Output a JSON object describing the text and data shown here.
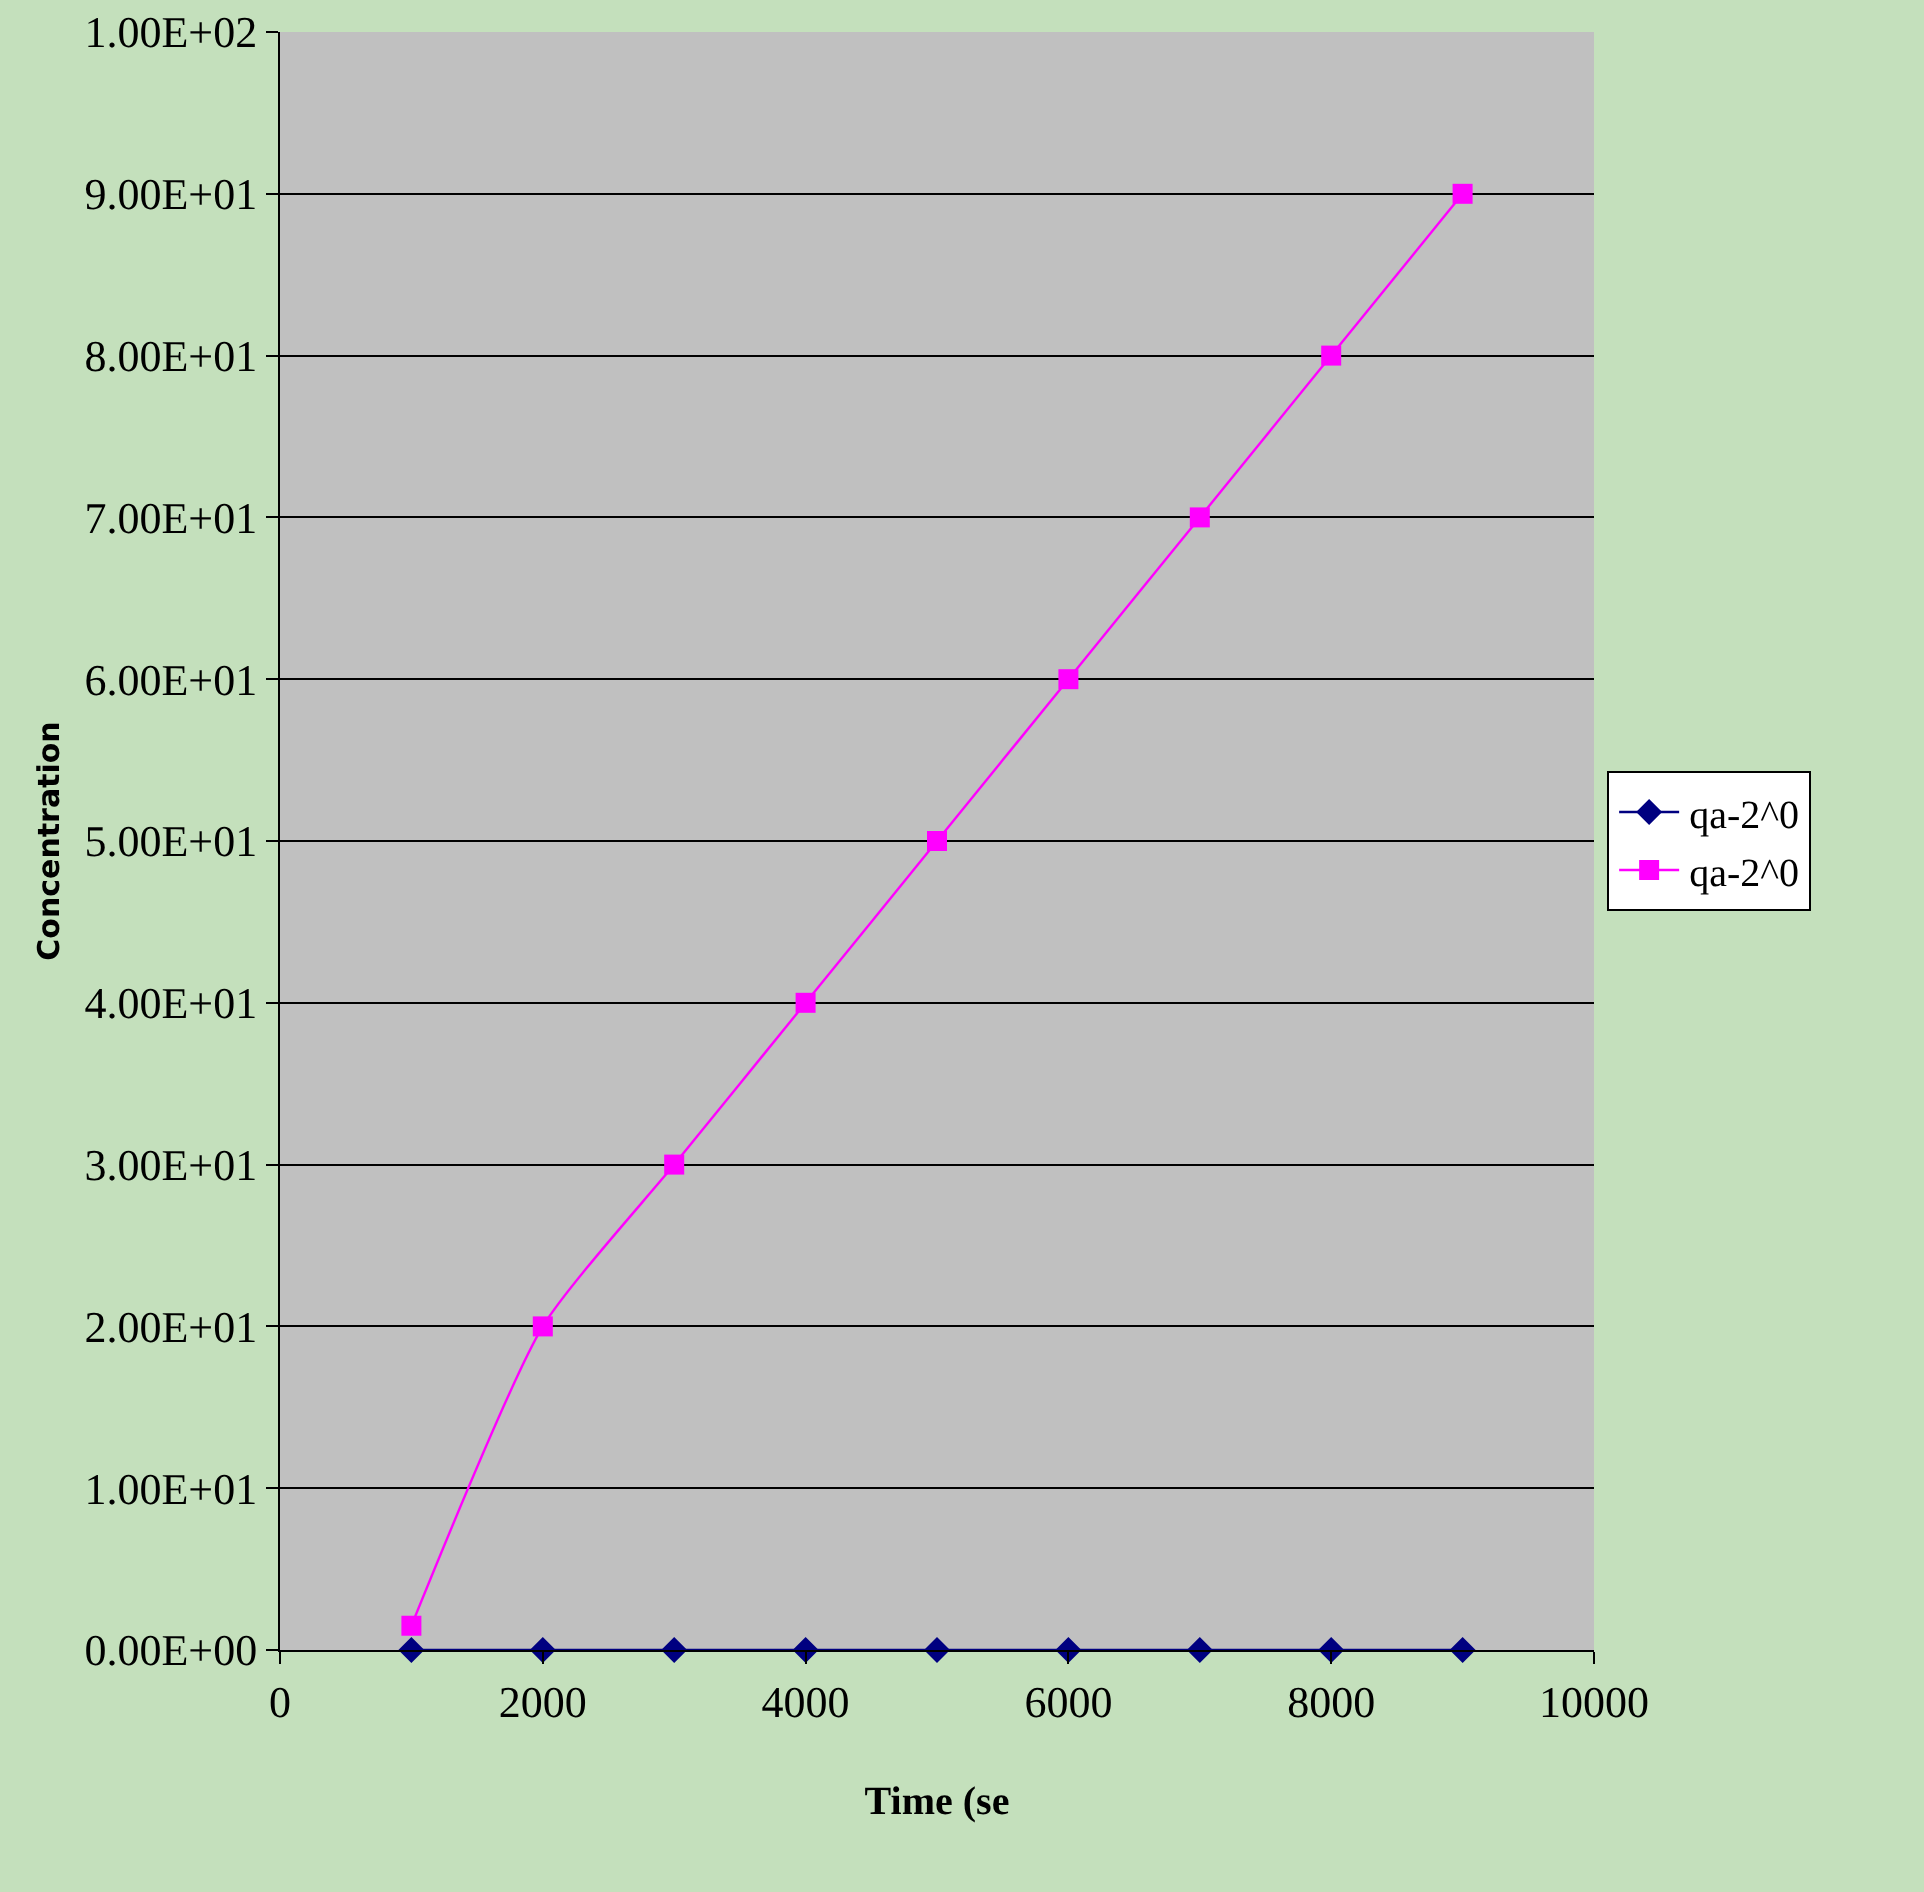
{
  "chart_data": {
    "type": "line",
    "xlabel": "Time (se",
    "ylabel": "Concentration",
    "x": [
      1000,
      2000,
      3000,
      4000,
      5000,
      6000,
      7000,
      8000,
      9000
    ],
    "series": [
      {
        "name": "qa-2^0",
        "color": "#000080",
        "marker": "diamond",
        "values": [
          0,
          0,
          0,
          0,
          0,
          0,
          0,
          0,
          0
        ]
      },
      {
        "name": "qa-2^0",
        "color": "#ff00ff",
        "marker": "square",
        "values": [
          1.5,
          20,
          30,
          40,
          50,
          60,
          70,
          80,
          90
        ]
      }
    ],
    "xlim": [
      0,
      10000
    ],
    "xticks": [
      0,
      2000,
      4000,
      6000,
      8000,
      10000
    ],
    "ylim": [
      0,
      100
    ],
    "yticks": [
      {
        "value": 0,
        "label": "0.00E+00"
      },
      {
        "value": 10,
        "label": "1.00E+01"
      },
      {
        "value": 20,
        "label": "2.00E+01"
      },
      {
        "value": 30,
        "label": "3.00E+01"
      },
      {
        "value": 40,
        "label": "4.00E+01"
      },
      {
        "value": 50,
        "label": "5.00E+01"
      },
      {
        "value": 60,
        "label": "6.00E+01"
      },
      {
        "value": 70,
        "label": "7.00E+01"
      },
      {
        "value": 80,
        "label": "8.00E+01"
      },
      {
        "value": 90,
        "label": "9.00E+01"
      },
      {
        "value": 100,
        "label": "1.00E+02"
      }
    ],
    "grid": "y",
    "legend": "right",
    "line_style": "solid"
  }
}
